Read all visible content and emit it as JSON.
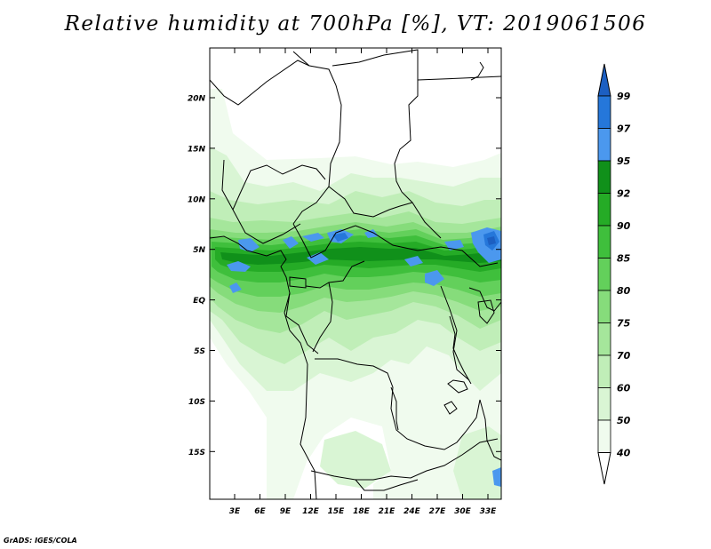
{
  "title": "Relative humidity at 700hPa [%], VT: 2019061506",
  "credit": "GrADS: IGES/COLA",
  "map": {
    "lat_ticks": [
      "20N",
      "15N",
      "10N",
      "5N",
      "EQ",
      "5S",
      "10S",
      "15S"
    ],
    "lon_ticks": [
      "3E",
      "6E",
      "9E",
      "12E",
      "15E",
      "18E",
      "21E",
      "24E",
      "27E",
      "30E",
      "33E"
    ]
  },
  "colorbar": {
    "levels": [
      "99",
      "97",
      "95",
      "92",
      "90",
      "85",
      "80",
      "75",
      "70",
      "60",
      "50",
      "40"
    ],
    "colors": {
      "c40": "#f0fbee",
      "c50": "#d9f5d4",
      "c60": "#c0eeb8",
      "c70": "#a5e69b",
      "c75": "#86dc7b",
      "c80": "#63d05b",
      "c85": "#3fbf3c",
      "c90": "#25ab26",
      "c92": "#10901a",
      "c95": "#4b98ee",
      "c97": "#2577da",
      "c99": "#1c5fc2"
    }
  }
}
